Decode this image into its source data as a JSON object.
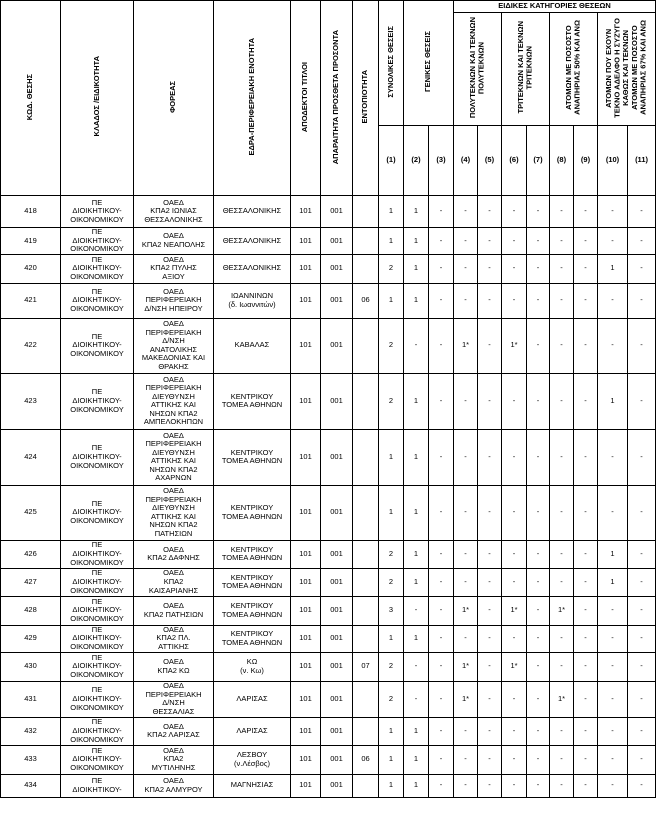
{
  "header": {
    "columns": [
      "ΚΩΔ. ΘΕΣΗΣ",
      "ΚΛΑΔΟΣ /ΕΙΔΙΚΟΤΗΤΑ",
      "ΦΟΡΕΑΣ",
      "ΕΔΡΑ-ΠΕΡΙΦΕΡΕΙΑΚΗ ΕΝΟΤΗΤΑ",
      "ΑΠΟΔΕΚΤΟΙ ΤΙΤΛΟΙ",
      "ΑΠΑΡΑΙΤΗΤΑ ΠΡΟΣΘΕΤΑ ΠΡΟΣΟΝΤΑ",
      "ΕΝΤΟΠΙΟΤΗΤΑ"
    ],
    "total": "ΣΥΝΟΛΙΚΕΣ ΘΕΣΕΙΣ",
    "general": "ΓΕΝΙΚΕΣ ΘΕΣΕΙΣ",
    "special": "ΕΙΔΙΚΕΣ ΚΑΤΗΓΟΡΙΕΣ ΘΕΣΕΩΝ",
    "special_groups": [
      "ΠΟΛΥΤΕΚΝΩΝ ΚΑΙ ΤΕΚΝΩΝ\nΠΟΛΥΤΕΚΝΩΝ",
      "ΤΡΙΤΕΚΝΩΝ ΚΑΙ ΤΕΚΝΩΝ\nΤΡΙΤΕΚΝΩΝ",
      "ΑΤΟΜΩΝ ΜΕ ΠΟΣΟΣΤΟ\nΑΝΑΠΗΡΙΑΣ 50% ΚΑΙ ΑΝΩ",
      "ΑΤΟΜΩΝ ΠΟΥ ΕΧΟΥΝ\nΤΕΚΝΟ ΑΔΕΛΦΟ Η ΣΥΖΥΓΟ\nΚΑΘΩΣ ΚΑΙ ΤΕΚΝΩΝ\nΑΤΟΜΩΝ ΜΕ ΠΟΣΟΣΤΟ\nΑΝΑΠΗΡΙΑΣ 67% ΚΑΙ ΑΝΩ"
    ],
    "numbers": [
      "(1)",
      "(2)",
      "(3)",
      "(4)",
      "(5)",
      "(6)",
      "(7)",
      "(8)",
      "(9)",
      "(10)",
      "(11)"
    ]
  },
  "table": {
    "rows": [
      [
        "418",
        "ΠΕ\nΔΙΟΙΚΗΤΙΚΟΥ-\nΟΙΚΟΝΟΜΙΚΟΥ",
        "ΟΑΕΔ\nΚΠΑ2 ΙΩΝΙΑΣ\nΘΕΣΣΑΛΟΝΙΚΗΣ",
        "ΘΕΣΣΑΛΟΝΙΚΗΣ",
        "101",
        "001",
        "",
        "1",
        "1",
        "-",
        "-",
        "-",
        "-",
        "-",
        "-",
        "-",
        "-",
        "-"
      ],
      [
        "419",
        "ΠΕ\nΔΙΟΙΚΗΤΙΚΟΥ-\nΟΙΚΟΝΟΜΙΚΟΥ",
        "ΟΑΕΔ\nΚΠΑ2 ΝΕΑΠΟΛΗΣ",
        "ΘΕΣΣΑΛΟΝΙΚΗΣ",
        "101",
        "001",
        "",
        "1",
        "1",
        "-",
        "-",
        "-",
        "-",
        "-",
        "-",
        "-",
        "-",
        "-"
      ],
      [
        "420",
        "ΠΕ\nΔΙΟΙΚΗΤΙΚΟΥ-\nΟΙΚΟΝΟΜΙΚΟΥ",
        "ΟΑΕΔ\nΚΠΑ2 ΠΥΛΗΣ\nΑΞΙΟΥ",
        "ΘΕΣΣΑΛΟΝΙΚΗΣ",
        "101",
        "001",
        "",
        "2",
        "1",
        "-",
        "-",
        "-",
        "-",
        "-",
        "-",
        "-",
        "1",
        "-"
      ],
      [
        "421",
        "ΠΕ\nΔΙΟΙΚΗΤΙΚΟΥ-\nΟΙΚΟΝΟΜΙΚΟΥ",
        "ΟΑΕΔ\nΠΕΡΙΦΕΡΕΙΑΚΗ\nΔ/ΝΣΗ ΗΠΕΙΡΟΥ",
        "ΙΩΑΝΝΙΝΩΝ\n(δ. Ιωαννιτών)",
        "101",
        "001",
        "06",
        "1",
        "1",
        "-",
        "-",
        "-",
        "-",
        "-",
        "-",
        "-",
        "-",
        "-"
      ],
      [
        "422",
        "ΠΕ\nΔΙΟΙΚΗΤΙΚΟΥ-\nΟΙΚΟΝΟΜΙΚΟΥ",
        "ΟΑΕΔ\nΠΕΡΙΦΕΡΕΙΑΚΗ\nΔ/ΝΣΗ\nΑΝΑΤΟΛΙΚΗΣ\nΜΑΚΕΔΟΝΙΑΣ ΚΑΙ\nΘΡΑΚΗΣ",
        "ΚΑΒΑΛΑΣ",
        "101",
        "001",
        "",
        "2",
        "-",
        "-",
        "1*",
        "-",
        "1*",
        "-",
        "-",
        "-",
        "-",
        "-"
      ],
      [
        "423",
        "ΠΕ\nΔΙΟΙΚΗΤΙΚΟΥ-\nΟΙΚΟΝΟΜΙΚΟΥ",
        "ΟΑΕΔ\nΠΕΡΙΦΕΡΕΙΑΚΗ\nΔΙΕΥΘΥΝΣΗ\nΑΤΤΙΚΗΣ ΚΑΙ\nΝΗΣΩΝ ΚΠΑ2\nΑΜΠΕΛΟΚΗΠΩΝ",
        "ΚΕΝΤΡΙΚΟΥ\nΤΟΜΕΑ ΑΘΗΝΩΝ",
        "101",
        "001",
        "",
        "2",
        "1",
        "-",
        "-",
        "-",
        "-",
        "-",
        "-",
        "-",
        "1",
        "-"
      ],
      [
        "424",
        "ΠΕ\nΔΙΟΙΚΗΤΙΚΟΥ-\nΟΙΚΟΝΟΜΙΚΟΥ",
        "ΟΑΕΔ\nΠΕΡΙΦΕΡΕΙΑΚΗ\nΔΙΕΥΘΥΝΣΗ\nΑΤΤΙΚΗΣ ΚΑΙ\nΝΗΣΩΝ ΚΠΑ2\nΑΧΑΡΝΩΝ",
        "ΚΕΝΤΡΙΚΟΥ\nΤΟΜΕΑ ΑΘΗΝΩΝ",
        "101",
        "001",
        "",
        "1",
        "1",
        "-",
        "-",
        "-",
        "-",
        "-",
        "-",
        "-",
        "-",
        "-"
      ],
      [
        "425",
        "ΠΕ\nΔΙΟΙΚΗΤΙΚΟΥ-\nΟΙΚΟΝΟΜΙΚΟΥ",
        "ΟΑΕΔ\nΠΕΡΙΦΕΡΕΙΑΚΗ\nΔΙΕΥΘΥΝΣΗ\nΑΤΤΙΚΗΣ ΚΑΙ\nΝΗΣΩΝ ΚΠΑ2\nΠΑΤΗΣΙΩΝ",
        "ΚΕΝΤΡΙΚΟΥ\nΤΟΜΕΑ ΑΘΗΝΩΝ",
        "101",
        "001",
        "",
        "1",
        "1",
        "-",
        "-",
        "-",
        "-",
        "-",
        "-",
        "-",
        "-",
        "-"
      ],
      [
        "426",
        "ΠΕ\nΔΙΟΙΚΗΤΙΚΟΥ-\nΟΙΚΟΝΟΜΙΚΟΥ",
        "ΟΑΕΔ\nΚΠΑ2 ΔΑΦΝΗΣ",
        "ΚΕΝΤΡΙΚΟΥ\nΤΟΜΕΑ ΑΘΗΝΩΝ",
        "101",
        "001",
        "",
        "2",
        "1",
        "-",
        "-",
        "-",
        "-",
        "-",
        "-",
        "-",
        "1",
        "-"
      ],
      [
        "427",
        "ΠΕ\nΔΙΟΙΚΗΤΙΚΟΥ-\nΟΙΚΟΝΟΜΙΚΟΥ",
        "ΟΑΕΔ\nΚΠΑ2\nΚΑΙΣΑΡΙΑΝΗΣ",
        "ΚΕΝΤΡΙΚΟΥ\nΤΟΜΕΑ ΑΘΗΝΩΝ",
        "101",
        "001",
        "",
        "2",
        "1",
        "-",
        "-",
        "-",
        "-",
        "-",
        "-",
        "-",
        "1",
        "-"
      ],
      [
        "428",
        "ΠΕ\nΔΙΟΙΚΗΤΙΚΟΥ-\nΟΙΚΟΝΟΜΙΚΟΥ",
        "ΟΑΕΔ\nΚΠΑ2 ΠΑΤΗΣΙΩΝ",
        "ΚΕΝΤΡΙΚΟΥ\nΤΟΜΕΑ ΑΘΗΝΩΝ",
        "101",
        "001",
        "",
        "3",
        "-",
        "-",
        "1*",
        "-",
        "1*",
        "-",
        "1*",
        "-",
        "-",
        "-"
      ],
      [
        "429",
        "ΠΕ\nΔΙΟΙΚΗΤΙΚΟΥ-\nΟΙΚΟΝΟΜΙΚΟΥ",
        "ΟΑΕΔ\nΚΠΑ2 ΠΛ.\nΑΤΤΙΚΗΣ",
        "ΚΕΝΤΡΙΚΟΥ\nΤΟΜΕΑ ΑΘΗΝΩΝ",
        "101",
        "001",
        "",
        "1",
        "1",
        "-",
        "-",
        "-",
        "-",
        "-",
        "-",
        "-",
        "-",
        "-"
      ],
      [
        "430",
        "ΠΕ\nΔΙΟΙΚΗΤΙΚΟΥ-\nΟΙΚΟΝΟΜΙΚΟΥ",
        "ΟΑΕΔ\nΚΠΑ2 ΚΩ",
        "ΚΩ\n(ν. Κω)",
        "101",
        "001",
        "07",
        "2",
        "-",
        "-",
        "1*",
        "-",
        "1*",
        "-",
        "-",
        "-",
        "-",
        "-"
      ],
      [
        "431",
        "ΠΕ\nΔΙΟΙΚΗΤΙΚΟΥ-\nΟΙΚΟΝΟΜΙΚΟΥ",
        "ΟΑΕΔ\nΠΕΡΙΦΕΡΕΙΑΚΗ\nΔ/ΝΣΗ\nΘΕΣΣΑΛΙΑΣ",
        "ΛΑΡΙΣΑΣ",
        "101",
        "001",
        "",
        "2",
        "-",
        "-",
        "1*",
        "-",
        "-",
        "-",
        "1*",
        "-",
        "-",
        "-"
      ],
      [
        "432",
        "ΠΕ\nΔΙΟΙΚΗΤΙΚΟΥ-\nΟΙΚΟΝΟΜΙΚΟΥ",
        "ΟΑΕΔ\nΚΠΑ2 ΛΑΡΙΣΑΣ",
        "ΛΑΡΙΣΑΣ",
        "101",
        "001",
        "",
        "1",
        "1",
        "-",
        "-",
        "-",
        "-",
        "-",
        "-",
        "-",
        "-",
        "-"
      ],
      [
        "433",
        "ΠΕ\nΔΙΟΙΚΗΤΙΚΟΥ-\nΟΙΚΟΝΟΜΙΚΟΥ",
        "ΟΑΕΔ\nΚΠΑ2\nΜΥΤΙΛΗΝΗΣ",
        "ΛΕΣΒΟΥ\n(ν.Λέσβος)",
        "101",
        "001",
        "06",
        "1",
        "1",
        "-",
        "-",
        "-",
        "-",
        "-",
        "-",
        "-",
        "-",
        "-"
      ],
      [
        "434",
        "ΠΕ\nΔΙΟΙΚΗΤΙΚΟΥ-",
        "ΟΑΕΔ\nΚΠΑ2 ΑΛΜΥΡΟΥ",
        "ΜΑΓΝΗΣΙΑΣ",
        "101",
        "001",
        "",
        "1",
        "1",
        "-",
        "-",
        "-",
        "-",
        "-",
        "-",
        "-",
        "-",
        "-"
      ]
    ]
  }
}
